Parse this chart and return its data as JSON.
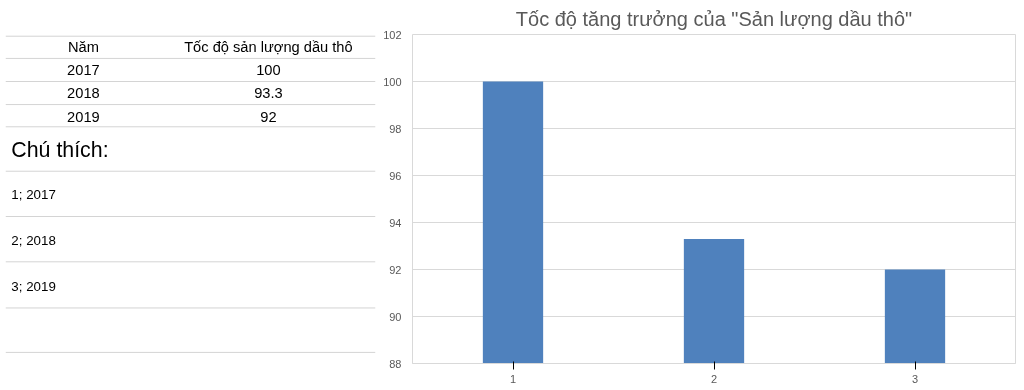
{
  "chart_data": {
    "type": "bar",
    "title": "Tốc độ tăng trưởng của \"Sản lượng dầu thô\"",
    "categories": [
      "1",
      "2",
      "3"
    ],
    "values": [
      100,
      93.3,
      92
    ],
    "color": "#4f81bd",
    "ylim": [
      88,
      102
    ],
    "yticks": [
      88,
      90,
      92,
      94,
      96,
      98,
      100,
      102
    ],
    "grid": "y",
    "annotations": [
      "Năm",
      "Tốc độ sản lượng dầu thô",
      "2017",
      "100",
      "2018",
      "93.3",
      "2019",
      "92",
      "Chú thích:",
      "1; 2017",
      "2; 2018",
      "3; 2019"
    ]
  }
}
